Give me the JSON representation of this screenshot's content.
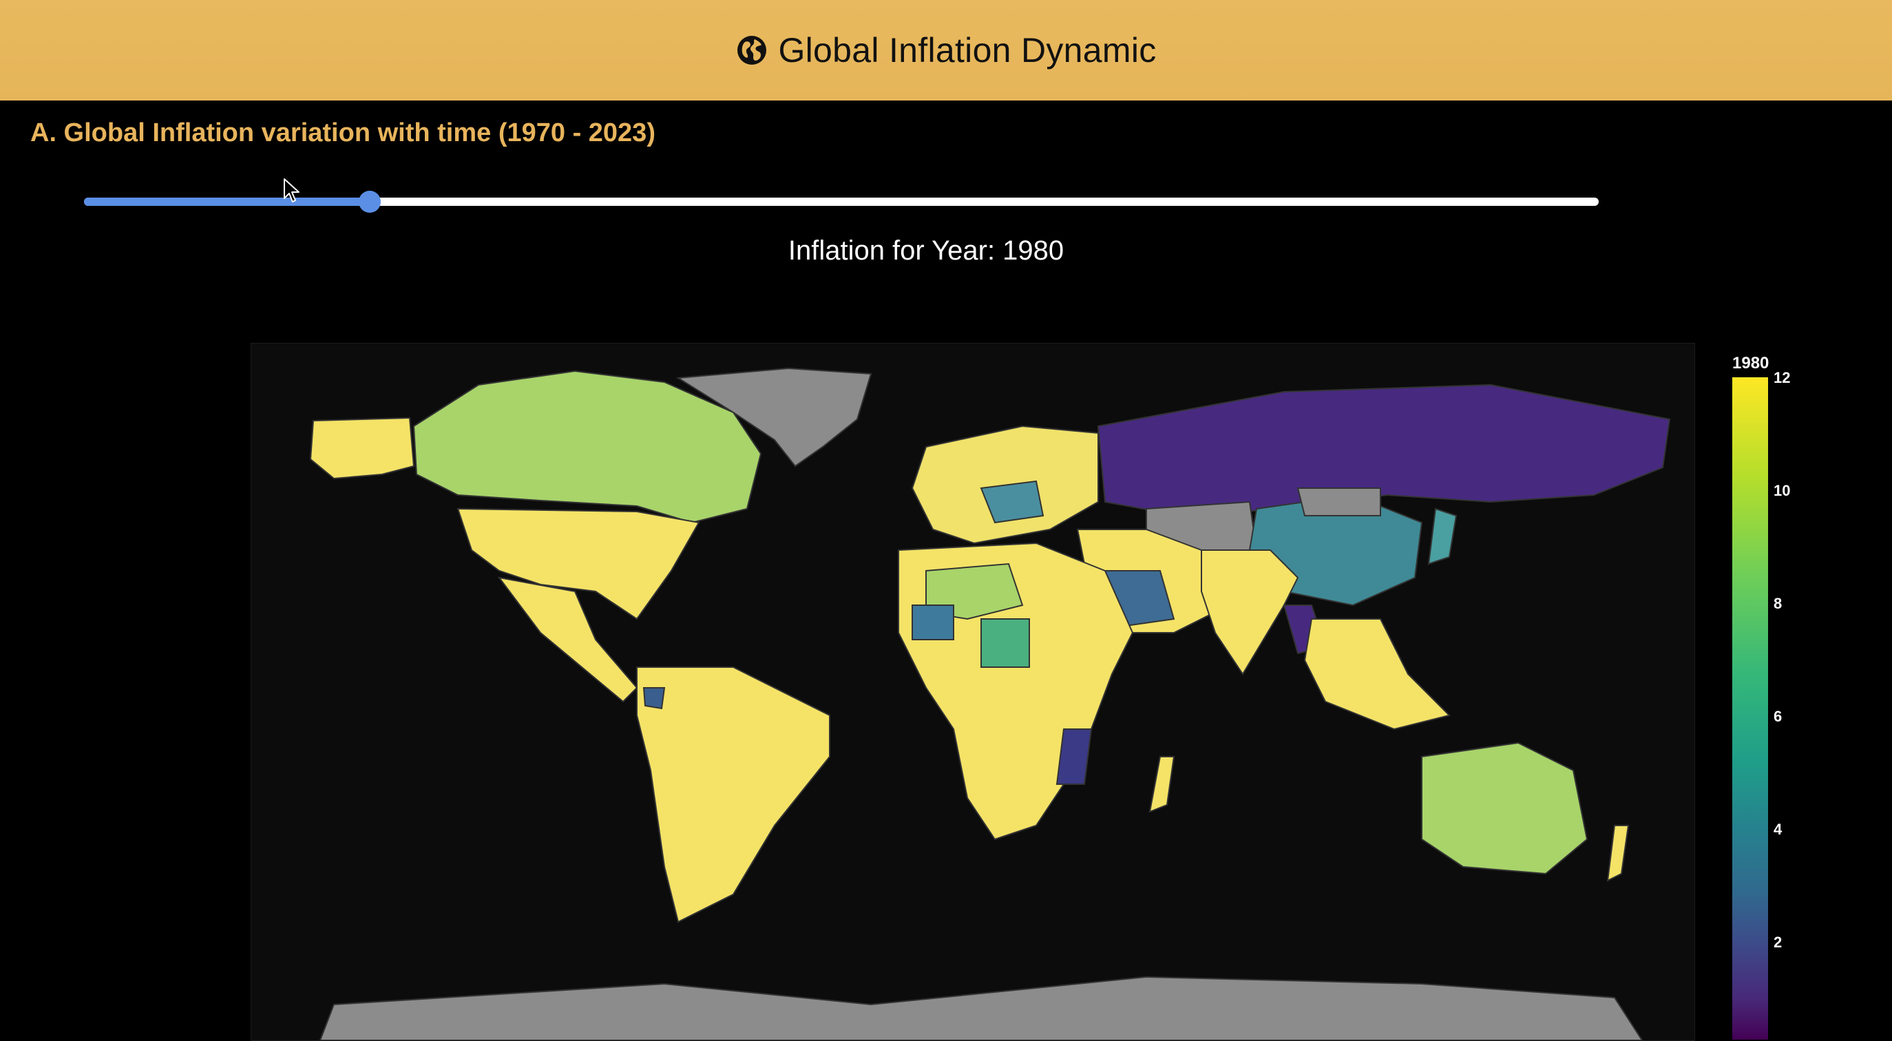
{
  "header": {
    "title": "Global Inflation Dynamic",
    "icon": "globe-icon"
  },
  "section": {
    "title": "A. Global Inflation variation with time (1970 - 2023)"
  },
  "slider": {
    "min": 1970,
    "max": 2023,
    "value": 1980,
    "fill_color": "#5b8fe6",
    "track_color": "#ffffff"
  },
  "year_label": "Inflation for Year: 1980",
  "map": {
    "type": "choropleth world map",
    "colorscale": "viridis",
    "missing_color": "#8c8c8c",
    "regions": {
      "greenland": "no data",
      "russia": "low",
      "china": "mid",
      "central-asia": "no data",
      "usa": "high",
      "canada": "upper-mid",
      "south-america": "high",
      "africa": "high",
      "australia": "upper-mid",
      "antarctica": "no data"
    }
  },
  "colorbar": {
    "title": "1980",
    "ticks": [
      "12",
      "10",
      "8",
      "6",
      "4",
      "2"
    ],
    "min": 0,
    "max": 12
  },
  "colors": {
    "header_bg": "#e6b55a",
    "section_title": "#e8b45c",
    "background": "#000000"
  }
}
